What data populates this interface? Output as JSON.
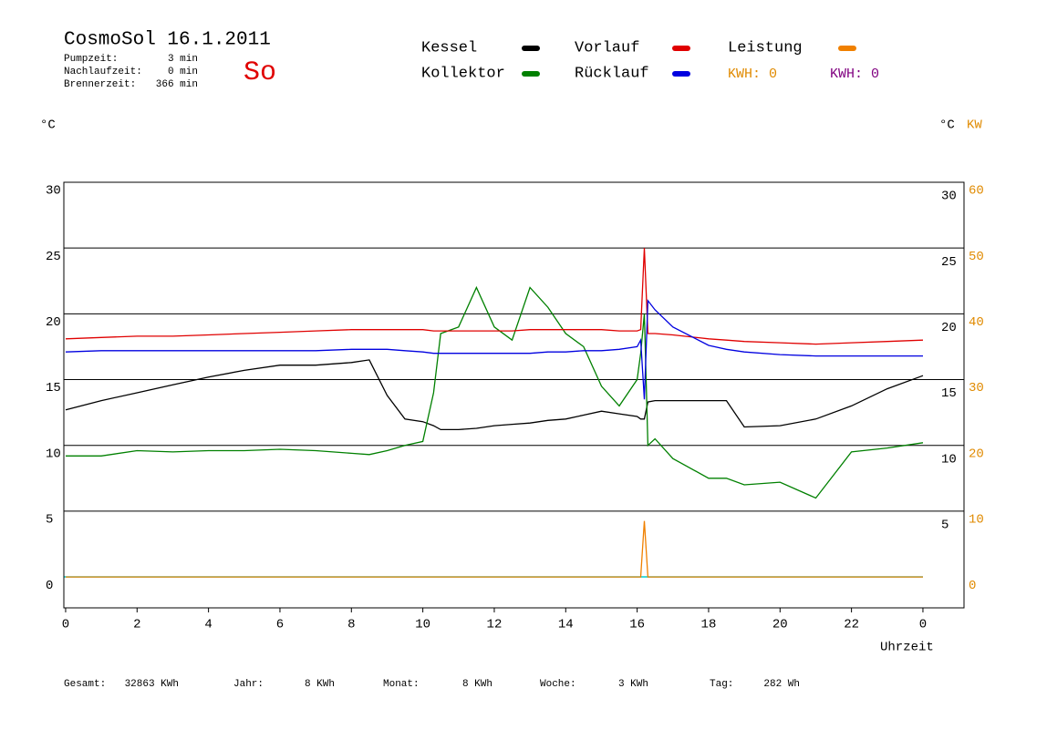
{
  "header": {
    "title": "CosmoSol 16.1.2011",
    "day": "So",
    "info": [
      {
        "label": "Pumpzeit:",
        "value": "3 min"
      },
      {
        "label": "Nachlaufzeit:",
        "value": "0 min"
      },
      {
        "label": "Brennerzeit:",
        "value": "366 min"
      }
    ],
    "kwh": [
      "KWH: 0",
      "KWH: 0"
    ]
  },
  "chart_data": {
    "type": "line",
    "y_unit": "°C",
    "y2_unit_left": "°C",
    "y2_unit": "KW",
    "x_label": "Uhrzeit",
    "xlim": [
      -0.05,
      25.15
    ],
    "xticks": [
      0,
      2,
      4,
      6,
      8,
      10,
      12,
      14,
      16,
      18,
      20,
      22,
      {
        "value": 24,
        "label": "0"
      }
    ],
    "ylim": [
      -2.35,
      30
    ],
    "yticks": [
      0,
      5,
      10,
      15,
      20,
      25,
      30
    ],
    "y2lim": [
      -4.7,
      60
    ],
    "y2ticks": [
      0,
      10,
      20,
      30,
      40,
      50,
      60
    ],
    "x": [
      0,
      1,
      2,
      3,
      4,
      5,
      6,
      7,
      8,
      8.5,
      9,
      9.5,
      10,
      10.3,
      10.5,
      11,
      11.5,
      12,
      12.5,
      13,
      13.5,
      14,
      14.5,
      15,
      15.5,
      16,
      16.1,
      16.2,
      16.3,
      16.5,
      17,
      18,
      18.5,
      19,
      20,
      21,
      22,
      23,
      24
    ],
    "series": [
      {
        "name": "Kessel",
        "color": "#000000",
        "values": [
          12.7,
          13.4,
          14.0,
          14.6,
          15.2,
          15.7,
          16.1,
          16.1,
          16.3,
          16.5,
          13.8,
          12.0,
          11.8,
          11.5,
          11.2,
          11.2,
          11.3,
          11.5,
          11.6,
          11.7,
          11.9,
          12.0,
          12.3,
          12.6,
          12.4,
          12.2,
          12.0,
          12.0,
          13.3,
          13.4,
          13.4,
          13.4,
          13.4,
          11.4,
          11.5,
          12.0,
          13.0,
          14.3,
          15.3
        ]
      },
      {
        "name": "Kollektor",
        "color": "#008000",
        "values": [
          9.2,
          9.2,
          9.6,
          9.5,
          9.6,
          9.6,
          9.7,
          9.6,
          9.4,
          9.3,
          9.6,
          10,
          10.3,
          14,
          18.5,
          19,
          22,
          19,
          18,
          22,
          20.5,
          18.5,
          17.5,
          14.5,
          13,
          15,
          17,
          20,
          10,
          10.5,
          9,
          7.5,
          7.5,
          7,
          7.2,
          6,
          9.5,
          9.8,
          10.2
        ]
      },
      {
        "name": "Vorlauf",
        "color": "#e00000",
        "values": [
          18.1,
          18.2,
          18.3,
          18.3,
          18.4,
          18.5,
          18.6,
          18.7,
          18.8,
          18.8,
          18.8,
          18.8,
          18.8,
          18.7,
          18.7,
          18.7,
          18.7,
          18.7,
          18.7,
          18.8,
          18.8,
          18.8,
          18.8,
          18.8,
          18.7,
          18.7,
          18.8,
          25,
          18.5,
          18.5,
          18.4,
          18.1,
          18.0,
          17.9,
          17.8,
          17.7,
          17.8,
          17.9,
          18.0
        ]
      },
      {
        "name": "Rücklauf",
        "color": "#0000e0",
        "values": [
          17.1,
          17.2,
          17.2,
          17.2,
          17.2,
          17.2,
          17.2,
          17.2,
          17.3,
          17.3,
          17.3,
          17.2,
          17.1,
          17.0,
          17.0,
          17.0,
          17.0,
          17.0,
          17.0,
          17.0,
          17.1,
          17.1,
          17.2,
          17.2,
          17.3,
          17.5,
          18,
          13.5,
          21,
          20.3,
          19,
          17.6,
          17.3,
          17.1,
          16.9,
          16.8,
          16.8,
          16.8,
          16.8
        ]
      },
      {
        "name": "Leistung",
        "color": "#f08000",
        "axis": "y2",
        "values": [
          0,
          0,
          0,
          0,
          0,
          0,
          0,
          0,
          0,
          0,
          0,
          0,
          0,
          0,
          0,
          0,
          0,
          0,
          0,
          0,
          0,
          0,
          0,
          0,
          0,
          0,
          0,
          8.5,
          0,
          0,
          0,
          0,
          0,
          0,
          0,
          0,
          0,
          0,
          0
        ]
      }
    ]
  },
  "footer": [
    {
      "label": "Gesamt:",
      "value": "32863 KWh"
    },
    {
      "label": "Jahr:",
      "value": "8 KWh"
    },
    {
      "label": "Monat:",
      "value": "8 KWh"
    },
    {
      "label": "Woche:",
      "value": "3 KWh"
    },
    {
      "label": "Tag:",
      "value": "282 Wh"
    }
  ]
}
